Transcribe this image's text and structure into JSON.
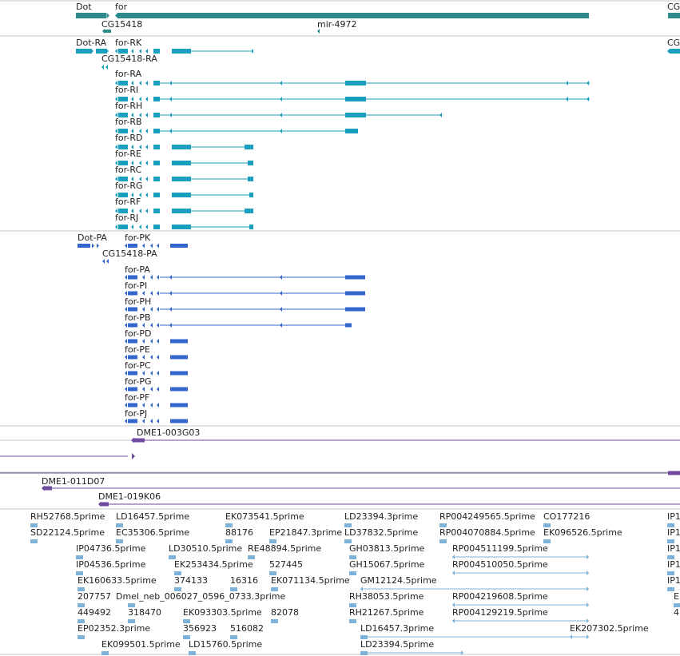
{
  "colors": {
    "gene": "#2e8b8b",
    "rna": "#1a9fbf",
    "protein": "#3366cc",
    "clone": "#6f4a9e",
    "est": "#7fb2d9",
    "separator": "#c7c7c7",
    "label": "#222222"
  },
  "gene_track": {
    "labels": [
      "Dot",
      "for",
      "CG15418",
      "mir-4972",
      "CG"
    ]
  },
  "rna_track": {
    "labels": [
      "Dot-RA",
      "for-RK",
      "CG15418-RA",
      "for-RA",
      "for-RI",
      "for-RH",
      "for-RB",
      "for-RD",
      "for-RE",
      "for-RC",
      "for-RG",
      "for-RF",
      "for-RJ",
      "CG"
    ]
  },
  "protein_track": {
    "labels": [
      "Dot-PA",
      "for-PK",
      "CG15418-PA",
      "for-PA",
      "for-PI",
      "for-PH",
      "for-PB",
      "for-PD",
      "for-PE",
      "for-PC",
      "for-PG",
      "for-PF",
      "for-PJ"
    ]
  },
  "clone_track": {
    "labels": [
      "DME1-003G03",
      "DME1-011D07",
      "DME1-019K06"
    ]
  },
  "est_track": {
    "labels": [
      "RH52768.5prime",
      "LD16457.5prime",
      "EK073541.5prime",
      "LD23394.3prime",
      "RP004249565.5prime",
      "CO177216",
      "IP1",
      "SD22124.5prime",
      "EC35306.5prime",
      "88176",
      "EP21847.3prime",
      "LD37832.5prime",
      "RP004070884.5prime",
      "EK096526.5prime",
      "IP1",
      "IP04736.5prime",
      "LD30510.5prime",
      "RE48894.5prime",
      "GH03813.5prime",
      "RP004511199.5prime",
      "IP1",
      "IP04536.5prime",
      "EK253434.5prime",
      "527445",
      "GH15067.5prime",
      "RP004510050.5prime",
      "IP1",
      "EK160633.5prime",
      "374133",
      "16316",
      "EK071134.5prime",
      "GM12124.5prime",
      "IP1",
      "207757",
      "Dmel_neb_006027_0596_0733.3prime",
      "RH38053.5prime",
      "RP004219608.5prime",
      "E",
      "449492",
      "318470",
      "EK093303.5prime",
      "82078",
      "RH21267.5prime",
      "RP004129219.5prime",
      "4",
      "EP02352.3prime",
      "356923",
      "516082",
      "LD16457.3prime",
      "EK207302.5prime",
      "EK099501.5prime",
      "LD15760.5prime",
      "LD23394.5prime"
    ]
  }
}
